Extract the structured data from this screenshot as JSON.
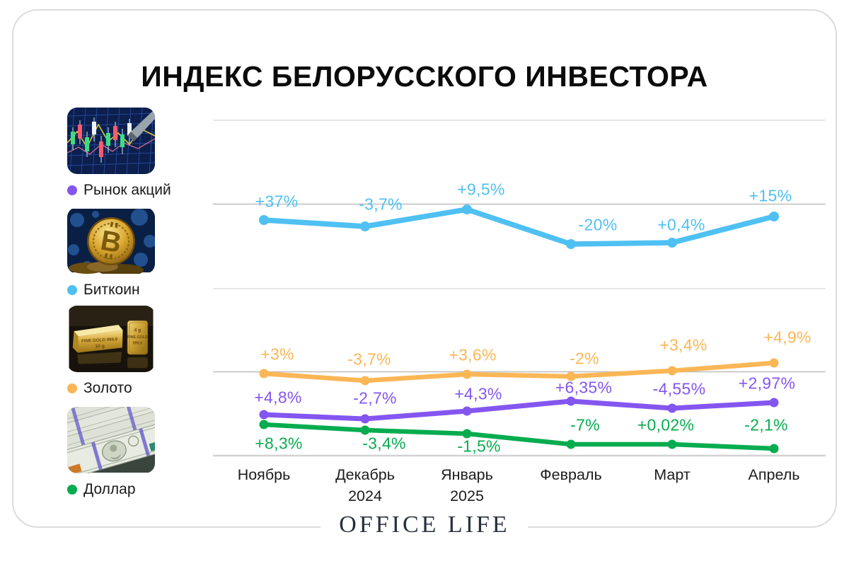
{
  "title": "ИНДЕКС БЕЛОРУССКОГО ИНВЕСТОРА",
  "footer": {
    "brand": "OFFICE LIFE"
  },
  "colors": {
    "stocks": "#8456F0",
    "bitcoin": "#4FC0F2",
    "gold": "#FBB655",
    "dollar": "#07AC4F",
    "grid_light": "#E7E7E7",
    "grid_zero": "#BEBEBE",
    "axis": "#D2D2D2",
    "card_border": "#DCDCDC",
    "brand_text": "#26303F"
  },
  "legend": [
    {
      "id": "stocks",
      "label": "Рынок акций",
      "color": "#8456F0",
      "image": "stock-market-photo"
    },
    {
      "id": "bitcoin",
      "label": "Биткоин",
      "color": "#4FC0F2",
      "image": "bitcoin-photo"
    },
    {
      "id": "gold",
      "label": "Золото",
      "color": "#FBB655",
      "image": "gold-bars-photo"
    },
    {
      "id": "dollar",
      "label": "Доллар",
      "color": "#07AC4F",
      "image": "dollar-bills-photo"
    }
  ],
  "chart_data": {
    "type": "line",
    "title": "ИНДЕКС БЕЛОРУССКОГО ИНВЕСТОРА",
    "unit": "%",
    "grid": "horizontal",
    "legend_position": "left",
    "categories": [
      "Ноябрь",
      "Декабрь 2024",
      "Январь 2025",
      "Февраль",
      "Март",
      "Апрель"
    ],
    "x_tick_lines": [
      [
        "Ноябрь"
      ],
      [
        "Декабрь",
        "2024"
      ],
      [
        "Январь",
        "2025"
      ],
      [
        "Февраль"
      ],
      [
        "Март"
      ],
      [
        "Апрель"
      ]
    ],
    "series": [
      {
        "name": "Биткоин",
        "color": "#4FC0F2",
        "values": [
          37,
          -3.7,
          9.5,
          -20,
          0.4,
          15
        ],
        "labels": [
          "+37%",
          "-3,7%",
          "+9,5%",
          "-20%",
          "+0,4%",
          "+15%"
        ]
      },
      {
        "name": "Золото",
        "color": "#FBB655",
        "values": [
          3,
          -3.7,
          3.6,
          -2,
          3.4,
          4.9
        ],
        "labels": [
          "+3%",
          "-3,7%",
          "+3,6%",
          "-2%",
          "+3,4%",
          "+4,9%"
        ]
      },
      {
        "name": "Рынок акций",
        "color": "#8456F0",
        "values": [
          4.8,
          -2.7,
          4.3,
          6.35,
          -4.55,
          2.97
        ],
        "labels": [
          "+4,8%",
          "-2,7%",
          "+4,3%",
          "+6,35%",
          "-4,55%",
          "+2,97%"
        ]
      },
      {
        "name": "Доллар",
        "color": "#07AC4F",
        "values": [
          8.3,
          -3.4,
          -1.5,
          -7,
          0.02,
          -2.1
        ],
        "labels": [
          "+8,3%",
          "-3,4%",
          "-1,5%",
          "-7%",
          "+0,02%",
          "-2,1%"
        ]
      }
    ]
  }
}
